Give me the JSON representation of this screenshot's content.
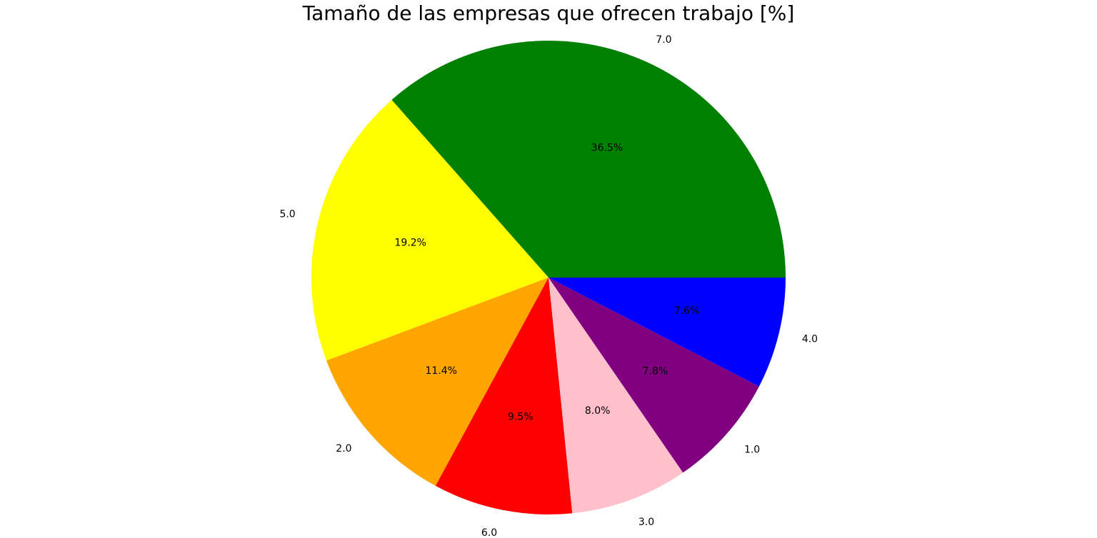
{
  "chart_data": {
    "type": "pie",
    "title": "Tamaño de las empresas que ofrecen trabajo [%]",
    "start_angle_deg": 0,
    "direction": "counterclockwise",
    "slices": [
      {
        "label": "7.0",
        "value": 36.5,
        "pct_label": "36.5%",
        "color": "#008000"
      },
      {
        "label": "5.0",
        "value": 19.2,
        "pct_label": "19.2%",
        "color": "#ffff00"
      },
      {
        "label": "2.0",
        "value": 11.4,
        "pct_label": "11.4%",
        "color": "#ffa500"
      },
      {
        "label": "6.0",
        "value": 9.5,
        "pct_label": "9.5%",
        "color": "#ff0000"
      },
      {
        "label": "3.0",
        "value": 8.0,
        "pct_label": "8.0%",
        "color": "#ffc0cb"
      },
      {
        "label": "1.0",
        "value": 7.8,
        "pct_label": "7.8%",
        "color": "#800080"
      },
      {
        "label": "4.0",
        "value": 7.6,
        "pct_label": "7.6%",
        "color": "#0000ff"
      }
    ]
  }
}
